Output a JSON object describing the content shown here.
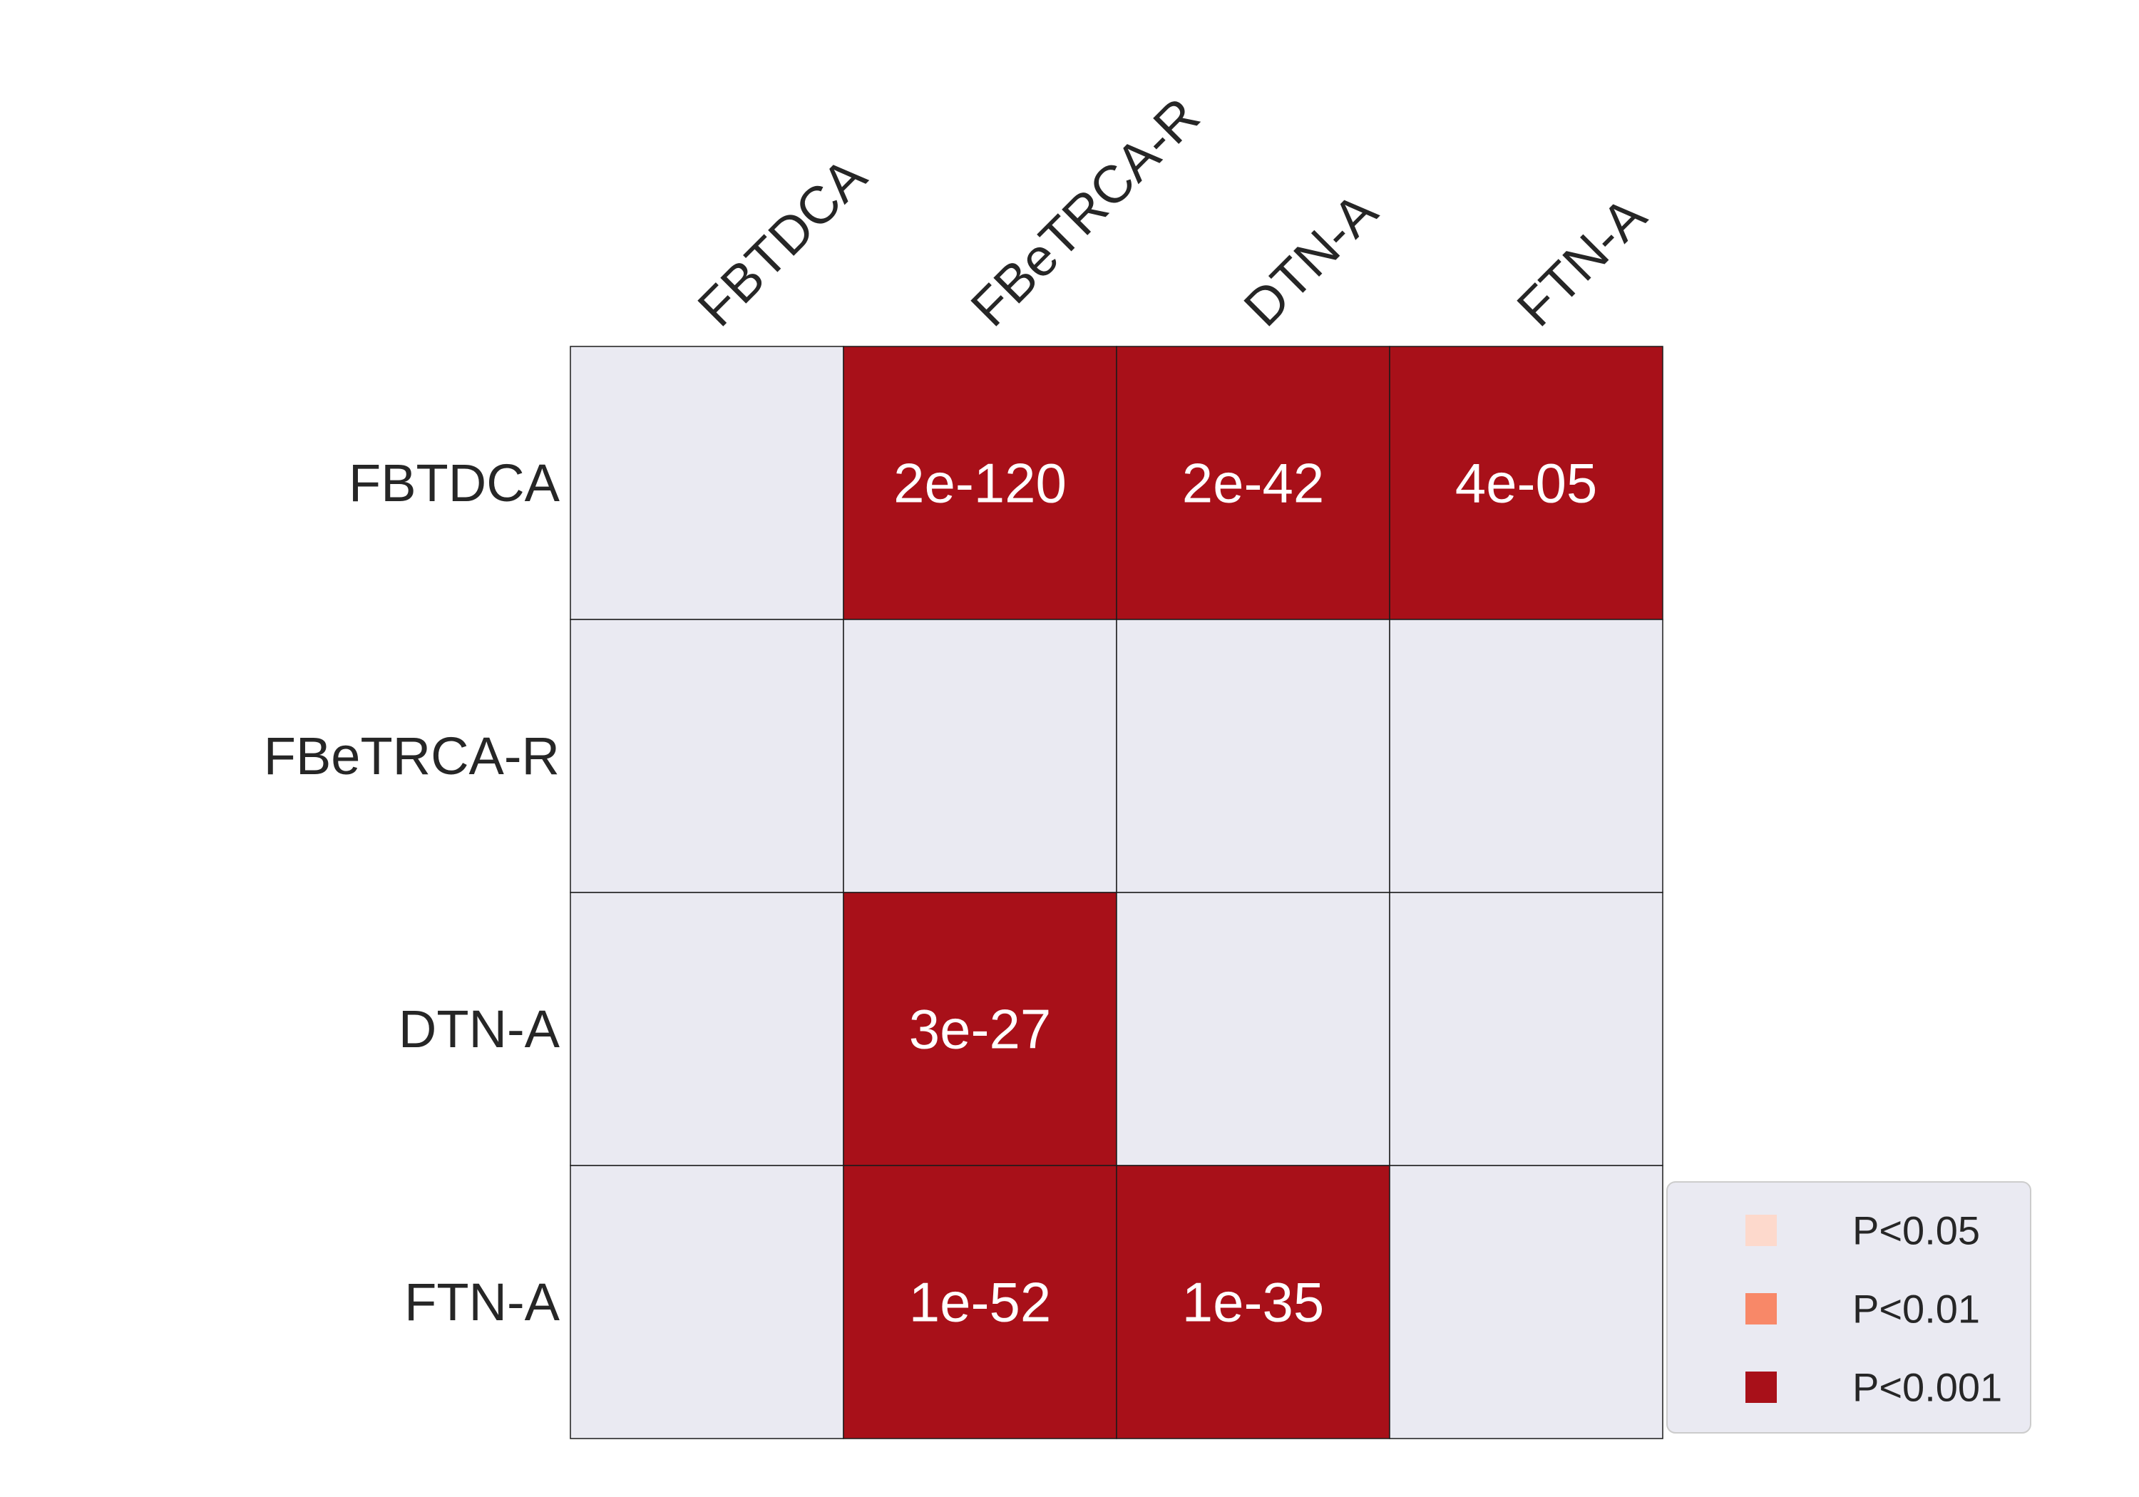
{
  "chart_data": {
    "type": "heatmap",
    "title": "",
    "rows": [
      "FBTDCA",
      "FBeTRCA-R",
      "DTN-A",
      "FTN-A"
    ],
    "columns": [
      "FBTDCA",
      "FBeTRCA-R",
      "DTN-A",
      "FTN-A"
    ],
    "cells": [
      {
        "row": "FBTDCA",
        "col": "FBeTRCA-R",
        "label": "2e-120",
        "p_value": 2e-120,
        "category": "P<0.001"
      },
      {
        "row": "FBTDCA",
        "col": "DTN-A",
        "label": "2e-42",
        "p_value": 2e-42,
        "category": "P<0.001"
      },
      {
        "row": "FBTDCA",
        "col": "FTN-A",
        "label": "4e-05",
        "p_value": 4e-05,
        "category": "P<0.001"
      },
      {
        "row": "DTN-A",
        "col": "FBeTRCA-R",
        "label": "3e-27",
        "p_value": 3e-27,
        "category": "P<0.001"
      },
      {
        "row": "FTN-A",
        "col": "FBeTRCA-R",
        "label": "1e-52",
        "p_value": 1e-52,
        "category": "P<0.001"
      },
      {
        "row": "FTN-A",
        "col": "DTN-A",
        "label": "1e-35",
        "p_value": 1e-35,
        "category": "P<0.001"
      }
    ],
    "empty_color": "#eaeaf2",
    "legend": {
      "position": "lower-right",
      "items": [
        {
          "label": "P<0.05",
          "color": "#fdd9cc"
        },
        {
          "label": "P<0.01",
          "color": "#f88868"
        },
        {
          "label": "P<0.001",
          "color": "#a81019"
        }
      ]
    }
  }
}
